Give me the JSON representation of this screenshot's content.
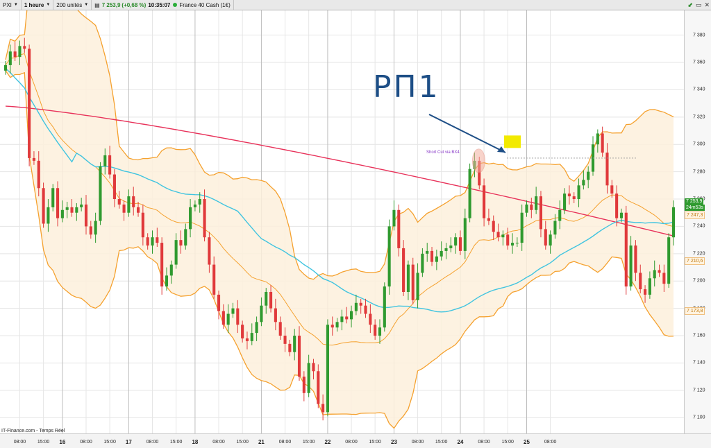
{
  "toolbar": {
    "symbol": "PXI",
    "interval": "1 heure",
    "units": "200 unités",
    "price": "7 253,9",
    "change": "(+0,68 %)",
    "time": "10:35:07",
    "instrument": "France 40 Cash (1€)"
  },
  "source": "IT-Finance.com - Temps Réel",
  "annotation": "PΠ1",
  "signal_label": "Short Cut via BX4",
  "price_tags": {
    "last": "7 253,9",
    "countdown": "24m53s",
    "ma_value": "7 247,3",
    "lower_band": "7 210,6",
    "lower_band2": "7 173,8"
  },
  "colors": {
    "up": "#2f9a2f",
    "down": "#e0393b",
    "band": "#f5a12e",
    "band_fill": "#fdf0dc",
    "ma_fast": "#40c4e0",
    "ma_slow": "#e8325a",
    "annotation": "#1d4e86",
    "highlight": "#f2ea00"
  },
  "chart_data": {
    "type": "candlestick",
    "y_ticks": [
      "7 100",
      "7 120",
      "7 140",
      "7 160",
      "7 180",
      "7 200",
      "7 220",
      "7 240",
      "7 260",
      "7 280",
      "7 300",
      "7 320",
      "7 340",
      "7 360",
      "7 380"
    ],
    "y_tick_values": [
      7100,
      7120,
      7140,
      7160,
      7180,
      7200,
      7220,
      7240,
      7260,
      7280,
      7300,
      7320,
      7340,
      7360,
      7380
    ],
    "ylim": [
      7092,
      7393
    ],
    "x_ticks": [
      {
        "i": 3,
        "label": "08:00",
        "day": false
      },
      {
        "i": 8,
        "label": "15:00",
        "day": false
      },
      {
        "i": 12,
        "label": "16",
        "day": true
      },
      {
        "i": 17,
        "label": "08:00",
        "day": false
      },
      {
        "i": 22,
        "label": "15:00",
        "day": false
      },
      {
        "i": 26,
        "label": "17",
        "day": true
      },
      {
        "i": 31,
        "label": "08:00",
        "day": false
      },
      {
        "i": 36,
        "label": "15:00",
        "day": false
      },
      {
        "i": 40,
        "label": "18",
        "day": true
      },
      {
        "i": 45,
        "label": "08:00",
        "day": false
      },
      {
        "i": 50,
        "label": "15:00",
        "day": false
      },
      {
        "i": 54,
        "label": "21",
        "day": true
      },
      {
        "i": 59,
        "label": "08:00",
        "day": false
      },
      {
        "i": 64,
        "label": "15:00",
        "day": false
      },
      {
        "i": 68,
        "label": "22",
        "day": true
      },
      {
        "i": 73,
        "label": "08:00",
        "day": false
      },
      {
        "i": 78,
        "label": "15:00",
        "day": false
      },
      {
        "i": 82,
        "label": "23",
        "day": true
      },
      {
        "i": 87,
        "label": "08:00",
        "day": false
      },
      {
        "i": 92,
        "label": "15:00",
        "day": false
      },
      {
        "i": 96,
        "label": "24",
        "day": true
      },
      {
        "i": 101,
        "label": "08:00",
        "day": false
      },
      {
        "i": 106,
        "label": "15:00",
        "day": false
      },
      {
        "i": 110,
        "label": "25",
        "day": true
      },
      {
        "i": 115,
        "label": "08:00",
        "day": false
      }
    ],
    "closes": [
      7358,
      7368,
      7364,
      7372,
      7370,
      7290,
      7288,
      7268,
      7242,
      7254,
      7268,
      7246,
      7252,
      7254,
      7250,
      7254,
      7256,
      7240,
      7234,
      7244,
      7284,
      7292,
      7278,
      7260,
      7256,
      7250,
      7262,
      7254,
      7250,
      7232,
      7226,
      7232,
      7228,
      7196,
      7204,
      7212,
      7230,
      7226,
      7238,
      7254,
      7256,
      7260,
      7232,
      7212,
      7190,
      7178,
      7168,
      7176,
      7180,
      7168,
      7158,
      7156,
      7162,
      7170,
      7182,
      7192,
      7180,
      7170,
      7160,
      7154,
      7148,
      7160,
      7130,
      7118,
      7140,
      7134,
      7110,
      7104,
      7168,
      7166,
      7170,
      7174,
      7172,
      7178,
      7184,
      7182,
      7176,
      7168,
      7160,
      7166,
      7196,
      7240,
      7252,
      7224,
      7192,
      7212,
      7186,
      7206,
      7220,
      7222,
      7214,
      7218,
      7222,
      7224,
      7226,
      7232,
      7222,
      7246,
      7282,
      7288,
      7270,
      7246,
      7244,
      7236,
      7232,
      7234,
      7226,
      7228,
      7228,
      7250,
      7256,
      7252,
      7262,
      7238,
      7226,
      7234,
      7244,
      7252,
      7264,
      7262,
      7260,
      7270,
      7274,
      7280,
      7300,
      7308,
      7294,
      7270,
      7264,
      7246,
      7250,
      7196,
      7226,
      7206,
      7194,
      7190,
      7202,
      7208,
      7206,
      7198,
      7232,
      7254
    ],
    "series": [
      {
        "name": "7 253,9",
        "values": []
      }
    ]
  }
}
